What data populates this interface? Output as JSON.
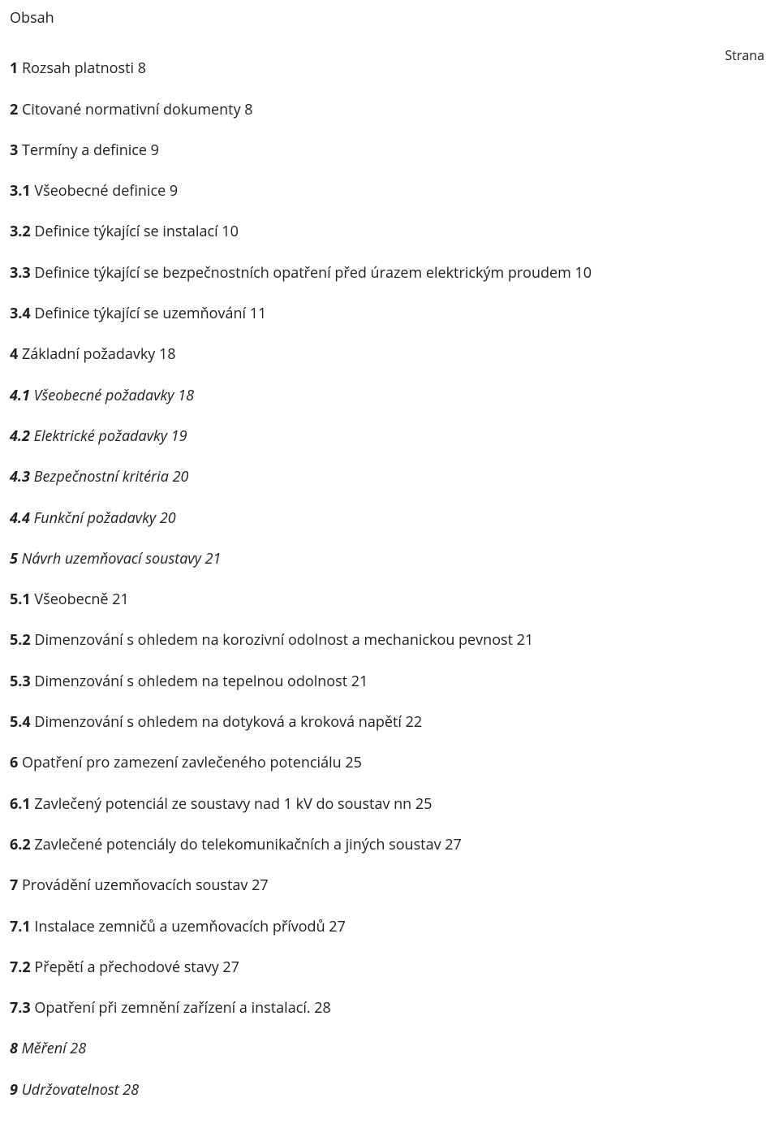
{
  "title": "Obsah",
  "pageLabel": "Strana",
  "entries": [
    {
      "num": "1",
      "text": " Rozsah platnosti 8",
      "italic": false
    },
    {
      "num": "2",
      "text": " Citované normativní dokumenty 8",
      "italic": false
    },
    {
      "num": "3",
      "text": " Termíny a definice 9",
      "italic": false
    },
    {
      "num": "3.1",
      "text": " Všeobecné definice 9",
      "italic": false
    },
    {
      "num": "3.2",
      "text": " Definice týkající se instalací 10",
      "italic": false
    },
    {
      "num": "3.3",
      "text": " Definice týkající se bezpečnostních opatření před úrazem elektrickým proudem 10",
      "italic": false
    },
    {
      "num": "3.4",
      "text": " Definice týkající se uzemňování 11",
      "italic": false
    },
    {
      "num": "4",
      "text": " Základní požadavky 18",
      "italic": false
    },
    {
      "num": "4.1",
      "text": " Všeobecné požadavky 18",
      "italic": true
    },
    {
      "num": "4.2",
      "text": " Elektrické požadavky 19",
      "italic": true
    },
    {
      "num": "4.3",
      "text": " Bezpečnostní kritéria 20",
      "italic": true
    },
    {
      "num": "4.4",
      "text": " Funkční požadavky 20",
      "italic": true
    },
    {
      "num": "5",
      "text": " Návrh uzemňovací soustavy 21",
      "italic": true
    },
    {
      "num": "5.1",
      "text": " Všeobecně 21",
      "italic": false
    },
    {
      "num": "5.2",
      "text": " Dimenzování s ohledem na korozivní odolnost a mechanickou pevnost 21",
      "italic": false
    },
    {
      "num": "5.3",
      "text": " Dimenzování s ohledem na tepelnou odolnost 21",
      "italic": false
    },
    {
      "num": "5.4",
      "text": " Dimenzování s ohledem na dotyková a kroková napětí 22",
      "italic": false
    },
    {
      "num": "6",
      "text": " Opatření pro zamezení zavlečeného potenciálu 25",
      "italic": false
    },
    {
      "num": "6.1",
      "text": " Zavlečený potenciál ze soustavy nad 1 kV do soustav nn 25",
      "italic": false
    },
    {
      "num": "6.2",
      "text": " Zavlečené potenciály do telekomunikačních a jiných soustav 27",
      "italic": false
    },
    {
      "num": "7",
      "text": " Provádění uzemňovacích soustav 27",
      "italic": false
    },
    {
      "num": "7.1",
      "text": " Instalace zemničů a uzemňovacích přívodů 27",
      "italic": false
    },
    {
      "num": "7.2",
      "text": " Přepětí a přechodové stavy 27",
      "italic": false
    },
    {
      "num": "7.3",
      "text": " Opatření při zemnění zařízení a instalací. 28",
      "italic": false
    },
    {
      "num": "8",
      "text": " Měření 28",
      "italic": true
    },
    {
      "num": "9",
      "text": " Udržovatelnost 28",
      "italic": true
    }
  ]
}
